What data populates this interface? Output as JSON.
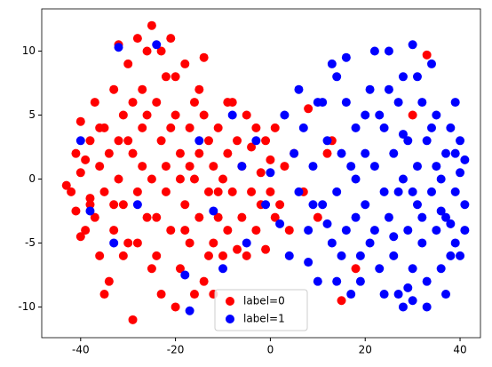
{
  "chart_data": {
    "type": "scatter",
    "xlim": [
      -48.2,
      44.3
    ],
    "ylim": [
      -12.4,
      13.3
    ],
    "xticks": [
      -40,
      -20,
      0,
      20,
      40
    ],
    "yticks": [
      -10,
      -5,
      0,
      5,
      10
    ],
    "legend": "lower center",
    "series": [
      {
        "name": "label=0",
        "color": "#ff0000",
        "x": [
          -43,
          -42,
          -41,
          -41,
          -40,
          -40,
          -39,
          -39,
          -38,
          -38,
          -37,
          -37,
          -36,
          -36,
          -35,
          -35,
          -34,
          -34,
          -33,
          -33,
          -32,
          -32,
          -31,
          -31,
          -30,
          -30,
          -29,
          -29,
          -28,
          -28,
          -27,
          -27,
          -26,
          -26,
          -25,
          -25,
          -24,
          -24,
          -23,
          -23,
          -22,
          -22,
          -21,
          -21,
          -20,
          -20,
          -19,
          -19,
          -18,
          -18,
          -17,
          -17,
          -16,
          -16,
          -15,
          -15,
          -14,
          -14,
          -13,
          -13,
          -12,
          -12,
          -11,
          -11,
          -10,
          -10,
          -9,
          -9,
          -8,
          -8,
          -7,
          -7,
          -6,
          -6,
          -5,
          -5,
          -4,
          -4,
          -3,
          -3,
          -2,
          -2,
          -1,
          -1,
          0,
          0,
          1,
          1,
          2,
          3,
          4,
          5,
          8,
          13,
          15,
          18,
          33,
          30,
          -27,
          -29,
          -31,
          -33,
          -36,
          -38,
          -24,
          -22,
          -26,
          -20,
          -18,
          -16,
          -14,
          -23,
          -25,
          -28,
          -30,
          -32,
          -35,
          -40,
          -19,
          -21,
          -17,
          -15,
          -13,
          -11,
          -9,
          -12,
          7,
          10,
          12
        ],
        "values": [
          -0.5,
          -1,
          2,
          -2.5,
          4.5,
          0.5,
          -4,
          1.5,
          3,
          -1.5,
          6,
          -3,
          1,
          -6,
          4,
          -1,
          2,
          -8,
          7,
          -4,
          0,
          3,
          5,
          -2,
          9,
          -5,
          -11,
          2,
          11,
          -1,
          7,
          4,
          -3,
          10,
          12,
          0,
          6,
          -6,
          3,
          -9,
          8,
          1,
          -4,
          11,
          5,
          -10,
          2,
          -7,
          9,
          -2,
          4,
          -5,
          0,
          6,
          -3,
          2,
          -8,
          5,
          -1,
          3,
          -5,
          1,
          4,
          -3,
          -6,
          0,
          2,
          -4,
          6,
          -1,
          -5.5,
          3,
          1,
          -3,
          5,
          -6,
          -1,
          2.5,
          4,
          -4,
          0.5,
          -2,
          3,
          -5.5,
          1.5,
          -1,
          4,
          -3,
          -2,
          1,
          -4,
          2,
          5.5,
          3,
          -9.5,
          -7,
          9.7,
          5,
          1,
          6,
          -6,
          -2,
          4,
          -2,
          -3,
          -1,
          5,
          8,
          -4,
          -9,
          9.5,
          10,
          -7,
          -5,
          3,
          10.5,
          -9,
          -4.5,
          0,
          4,
          1,
          7,
          -6,
          -1,
          6,
          -9,
          -1,
          -3,
          2
        ]
      },
      {
        "name": "label=1",
        "color": "#0000ff",
        "x": [
          -40,
          -38,
          -33,
          -32,
          -24,
          -17,
          -18,
          -28,
          -10,
          -8,
          -5,
          -3,
          -1,
          0,
          2,
          3,
          4,
          5,
          6,
          7,
          8,
          9,
          10,
          10,
          11,
          12,
          13,
          14,
          14,
          15,
          16,
          16,
          17,
          18,
          18,
          19,
          20,
          20,
          21,
          22,
          22,
          23,
          24,
          24,
          25,
          25,
          26,
          26,
          27,
          27,
          28,
          28,
          29,
          29,
          30,
          30,
          31,
          31,
          32,
          32,
          33,
          33,
          34,
          34,
          35,
          35,
          36,
          36,
          37,
          37,
          38,
          38,
          39,
          39,
          40,
          40,
          41,
          41,
          19,
          21,
          23,
          25,
          27,
          29,
          31,
          33,
          35,
          37,
          39,
          17,
          15,
          13,
          11,
          9,
          24,
          26,
          28,
          30,
          32,
          34,
          36,
          38,
          22,
          20,
          18,
          16,
          14,
          12,
          30,
          28,
          -15,
          -12,
          -6,
          6,
          8,
          40,
          41,
          39
        ],
        "values": [
          3,
          -2.5,
          -5,
          10.3,
          10.5,
          -10.3,
          -7.5,
          -2,
          -7,
          5,
          -5,
          3,
          -2,
          0.5,
          -3.5,
          5,
          -6,
          2,
          -1,
          4,
          -4,
          1,
          -8,
          6,
          -2,
          3,
          -5,
          8,
          -1,
          2,
          -4,
          6,
          -9,
          0,
          4,
          -6,
          2,
          -2,
          7,
          -4,
          1,
          -7,
          4,
          -1,
          10,
          -3,
          2,
          -6,
          6,
          -9,
          0,
          8,
          -4,
          3,
          -7,
          10.5,
          1,
          -2,
          6,
          -5,
          -8,
          3,
          -1,
          9,
          -4,
          5,
          0,
          -7,
          2,
          -3,
          -6,
          4,
          -1,
          -5,
          0.5,
          3,
          -2,
          -4,
          -8,
          -5,
          5,
          7,
          -1,
          -8.5,
          8,
          -10,
          1,
          -9,
          2,
          1,
          -6,
          9,
          6,
          -2,
          -9,
          -4.5,
          3.5,
          -1,
          -3,
          4,
          -2.5,
          -3.5,
          10,
          5,
          -3,
          9.5,
          -8,
          -3.5,
          -9.5,
          -10,
          3,
          -2.5,
          1,
          7,
          -6.5,
          -6,
          1.5,
          6
        ]
      }
    ]
  }
}
